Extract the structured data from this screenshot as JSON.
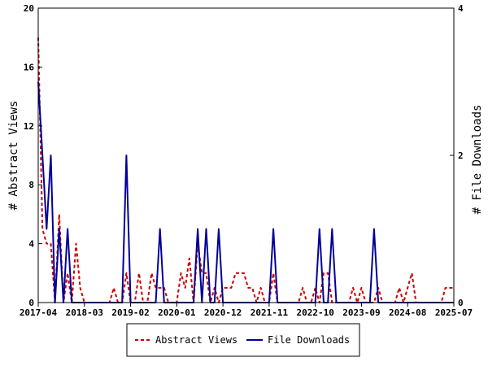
{
  "chart_data": {
    "type": "line",
    "x_ticks": [
      "2017-04",
      "2018-03",
      "2019-02",
      "2020-01",
      "2020-12",
      "2021-11",
      "2022-10",
      "2023-09",
      "2024-08",
      "2025-07"
    ],
    "x_range": [
      "2017-04",
      "2025-07"
    ],
    "y_left": {
      "label": "# Abstract Views",
      "ticks": [
        0,
        4,
        8,
        12,
        16,
        20
      ],
      "range": [
        0,
        20
      ]
    },
    "y_right": {
      "label": "# File Downloads",
      "ticks": [
        0,
        2,
        4
      ],
      "range": [
        0,
        4
      ]
    },
    "series": [
      {
        "name": "Abstract Views",
        "axis": "left",
        "color": "#cc0000",
        "style": "dashed",
        "points": [
          [
            "2017-04",
            18
          ],
          [
            "2017-05",
            5
          ],
          [
            "2017-06",
            4
          ],
          [
            "2017-07",
            4
          ],
          [
            "2017-08",
            0
          ],
          [
            "2017-09",
            6
          ],
          [
            "2017-10",
            0
          ],
          [
            "2017-11",
            2
          ],
          [
            "2017-12",
            0
          ],
          [
            "2018-01",
            4
          ],
          [
            "2018-02",
            1
          ],
          [
            "2018-03",
            0
          ],
          [
            "2018-04",
            0
          ],
          [
            "2018-05",
            0
          ],
          [
            "2018-06",
            0
          ],
          [
            "2018-07",
            0
          ],
          [
            "2018-08",
            0
          ],
          [
            "2018-09",
            0
          ],
          [
            "2018-10",
            1
          ],
          [
            "2018-11",
            0
          ],
          [
            "2018-12",
            0
          ],
          [
            "2019-01",
            2
          ],
          [
            "2019-02",
            0
          ],
          [
            "2019-03",
            0
          ],
          [
            "2019-04",
            2
          ],
          [
            "2019-05",
            0
          ],
          [
            "2019-06",
            0
          ],
          [
            "2019-07",
            2
          ],
          [
            "2019-08",
            1
          ],
          [
            "2019-09",
            1
          ],
          [
            "2019-10",
            1
          ],
          [
            "2019-11",
            0
          ],
          [
            "2019-12",
            0
          ],
          [
            "2020-01",
            0
          ],
          [
            "2020-02",
            2
          ],
          [
            "2020-03",
            1
          ],
          [
            "2020-04",
            3
          ],
          [
            "2020-05",
            0
          ],
          [
            "2020-06",
            4
          ],
          [
            "2020-07",
            2
          ],
          [
            "2020-08",
            2
          ],
          [
            "2020-09",
            0
          ],
          [
            "2020-10",
            1
          ],
          [
            "2020-11",
            0
          ],
          [
            "2020-12",
            1
          ],
          [
            "2021-01",
            1
          ],
          [
            "2021-02",
            1
          ],
          [
            "2021-03",
            2
          ],
          [
            "2021-04",
            2
          ],
          [
            "2021-05",
            2
          ],
          [
            "2021-06",
            1
          ],
          [
            "2021-07",
            1
          ],
          [
            "2021-08",
            0
          ],
          [
            "2021-09",
            1
          ],
          [
            "2021-10",
            0
          ],
          [
            "2021-11",
            0
          ],
          [
            "2021-12",
            2
          ],
          [
            "2022-01",
            0
          ],
          [
            "2022-02",
            0
          ],
          [
            "2022-03",
            0
          ],
          [
            "2022-04",
            0
          ],
          [
            "2022-05",
            0
          ],
          [
            "2022-06",
            0
          ],
          [
            "2022-07",
            1
          ],
          [
            "2022-08",
            0
          ],
          [
            "2022-09",
            0
          ],
          [
            "2022-10",
            1
          ],
          [
            "2022-11",
            0
          ],
          [
            "2022-12",
            2
          ],
          [
            "2023-01",
            2
          ],
          [
            "2023-02",
            0
          ],
          [
            "2023-03",
            0
          ],
          [
            "2023-04",
            0
          ],
          [
            "2023-05",
            0
          ],
          [
            "2023-06",
            0
          ],
          [
            "2023-07",
            1
          ],
          [
            "2023-08",
            0
          ],
          [
            "2023-09",
            1
          ],
          [
            "2023-10",
            0
          ],
          [
            "2023-11",
            0
          ],
          [
            "2023-12",
            0
          ],
          [
            "2024-01",
            1
          ],
          [
            "2024-02",
            0
          ],
          [
            "2024-03",
            0
          ],
          [
            "2024-04",
            0
          ],
          [
            "2024-05",
            0
          ],
          [
            "2024-06",
            1
          ],
          [
            "2024-07",
            0
          ],
          [
            "2024-08",
            1
          ],
          [
            "2024-09",
            2
          ],
          [
            "2024-10",
            0
          ],
          [
            "2024-11",
            0
          ],
          [
            "2024-12",
            0
          ],
          [
            "2025-01",
            0
          ],
          [
            "2025-02",
            0
          ],
          [
            "2025-03",
            0
          ],
          [
            "2025-04",
            0
          ],
          [
            "2025-05",
            1
          ],
          [
            "2025-06",
            1
          ],
          [
            "2025-07",
            1
          ]
        ]
      },
      {
        "name": "File Downloads",
        "axis": "right",
        "color": "#000099",
        "style": "solid",
        "points": [
          [
            "2017-04",
            3
          ],
          [
            "2017-05",
            2
          ],
          [
            "2017-06",
            1
          ],
          [
            "2017-07",
            2
          ],
          [
            "2017-08",
            0
          ],
          [
            "2017-09",
            1
          ],
          [
            "2017-10",
            0
          ],
          [
            "2017-11",
            1
          ],
          [
            "2017-12",
            0
          ],
          [
            "2018-01",
            0
          ],
          [
            "2018-02",
            0
          ],
          [
            "2018-03",
            0
          ],
          [
            "2018-04",
            0
          ],
          [
            "2018-05",
            0
          ],
          [
            "2018-06",
            0
          ],
          [
            "2018-07",
            0
          ],
          [
            "2018-08",
            0
          ],
          [
            "2018-09",
            0
          ],
          [
            "2018-10",
            0
          ],
          [
            "2018-11",
            0
          ],
          [
            "2018-12",
            0
          ],
          [
            "2019-01",
            2
          ],
          [
            "2019-02",
            0
          ],
          [
            "2019-03",
            0
          ],
          [
            "2019-04",
            0
          ],
          [
            "2019-05",
            0
          ],
          [
            "2019-06",
            0
          ],
          [
            "2019-07",
            0
          ],
          [
            "2019-08",
            0
          ],
          [
            "2019-09",
            1
          ],
          [
            "2019-10",
            0
          ],
          [
            "2019-11",
            0
          ],
          [
            "2019-12",
            0
          ],
          [
            "2020-01",
            0
          ],
          [
            "2020-02",
            0
          ],
          [
            "2020-03",
            0
          ],
          [
            "2020-04",
            0
          ],
          [
            "2020-05",
            0
          ],
          [
            "2020-06",
            1
          ],
          [
            "2020-07",
            0
          ],
          [
            "2020-08",
            1
          ],
          [
            "2020-09",
            0
          ],
          [
            "2020-10",
            0
          ],
          [
            "2020-11",
            1
          ],
          [
            "2020-12",
            0
          ],
          [
            "2021-01",
            0
          ],
          [
            "2021-02",
            0
          ],
          [
            "2021-03",
            0
          ],
          [
            "2021-04",
            0
          ],
          [
            "2021-05",
            0
          ],
          [
            "2021-06",
            0
          ],
          [
            "2021-07",
            0
          ],
          [
            "2021-08",
            0
          ],
          [
            "2021-09",
            0
          ],
          [
            "2021-10",
            0
          ],
          [
            "2021-11",
            0
          ],
          [
            "2021-12",
            1
          ],
          [
            "2022-01",
            0
          ],
          [
            "2022-02",
            0
          ],
          [
            "2022-03",
            0
          ],
          [
            "2022-04",
            0
          ],
          [
            "2022-05",
            0
          ],
          [
            "2022-06",
            0
          ],
          [
            "2022-07",
            0
          ],
          [
            "2022-08",
            0
          ],
          [
            "2022-09",
            0
          ],
          [
            "2022-10",
            0
          ],
          [
            "2022-11",
            1
          ],
          [
            "2022-12",
            0
          ],
          [
            "2023-01",
            0
          ],
          [
            "2023-02",
            1
          ],
          [
            "2023-03",
            0
          ],
          [
            "2023-04",
            0
          ],
          [
            "2023-05",
            0
          ],
          [
            "2023-06",
            0
          ],
          [
            "2023-07",
            0
          ],
          [
            "2023-08",
            0
          ],
          [
            "2023-09",
            0
          ],
          [
            "2023-10",
            0
          ],
          [
            "2023-11",
            0
          ],
          [
            "2023-12",
            1
          ],
          [
            "2024-01",
            0
          ],
          [
            "2024-02",
            0
          ],
          [
            "2024-03",
            0
          ],
          [
            "2024-04",
            0
          ],
          [
            "2024-05",
            0
          ],
          [
            "2024-06",
            0
          ],
          [
            "2024-07",
            0
          ],
          [
            "2024-08",
            0
          ],
          [
            "2024-09",
            0
          ],
          [
            "2024-10",
            0
          ],
          [
            "2024-11",
            0
          ],
          [
            "2024-12",
            0
          ],
          [
            "2025-01",
            0
          ],
          [
            "2025-02",
            0
          ],
          [
            "2025-03",
            0
          ],
          [
            "2025-04",
            0
          ],
          [
            "2025-05",
            0
          ],
          [
            "2025-06",
            0
          ],
          [
            "2025-07",
            0
          ]
        ]
      }
    ],
    "grid": false,
    "legend_position": "bottom-center"
  }
}
